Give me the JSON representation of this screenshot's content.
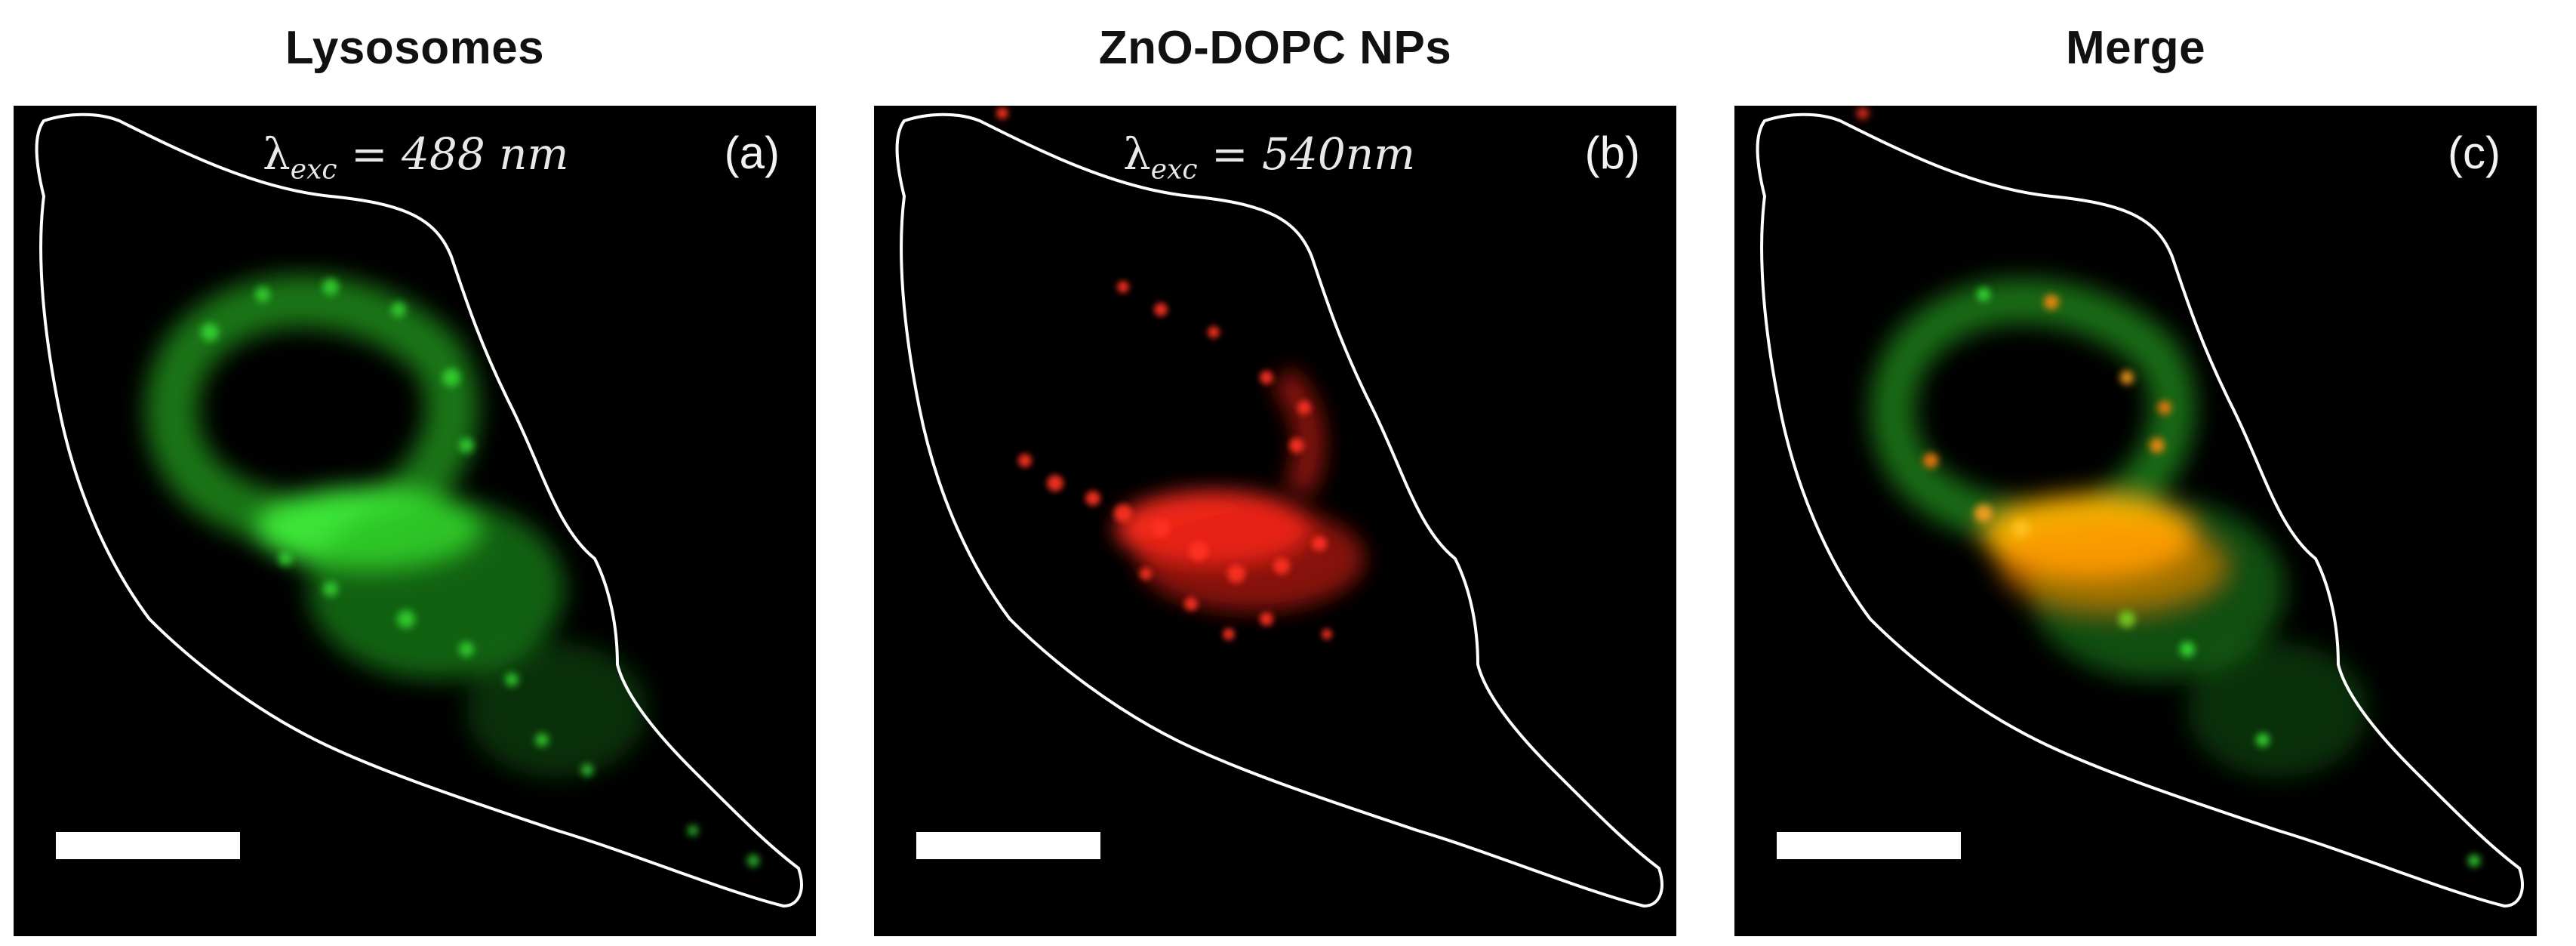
{
  "panels": [
    {
      "title": "Lysosomes",
      "label": "(a)",
      "excitation": {
        "symbol": "λ",
        "subscript": "exc",
        "value": "= 488 nm"
      },
      "channel": "green"
    },
    {
      "title": "ZnO-DOPC NPs",
      "label": "(b)",
      "excitation": {
        "symbol": "λ",
        "subscript": "exc",
        "value": "= 540nm"
      },
      "channel": "red"
    },
    {
      "title": "Merge",
      "label": "(c)",
      "excitation": null,
      "channel": "merge"
    }
  ],
  "colors": {
    "background": "#000000",
    "green_channel": "#2fd62a",
    "red_channel": "#ff2a1a",
    "colocalization": "#ffb300",
    "outline": "#ffffff",
    "scalebar": "#ffffff"
  }
}
